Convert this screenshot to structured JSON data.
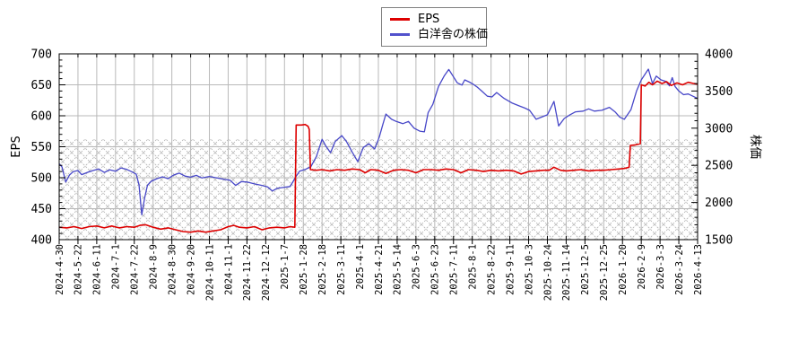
{
  "background": "#ffffff",
  "legend": {
    "position": "top-center",
    "items": [
      {
        "label": "EPS",
        "color": "#dd0000"
      },
      {
        "label": "白洋舎の株価",
        "color": "#5252cc"
      }
    ]
  },
  "chart_data": {
    "type": "line",
    "title": "",
    "grid": true,
    "legend_position": "top-center",
    "left_axis": {
      "label": "EPS",
      "min": 400,
      "max": 700,
      "tick_step": 50,
      "minor_step": 10,
      "tick_labels": [
        "400",
        "450",
        "500",
        "550",
        "600",
        "650",
        "700"
      ]
    },
    "right_axis": {
      "label": "株価",
      "min": 1500,
      "max": 4000,
      "tick_step": 500,
      "minor_step": 100,
      "tick_labels": [
        "1500",
        "2000",
        "2500",
        "3000",
        "3500",
        "4000"
      ]
    },
    "hatch_band": {
      "axis": "right",
      "from": 1500,
      "to": 2850,
      "style": "crosshatch"
    },
    "x_tick_labels": [
      "2024-4-30",
      "2024-5-22",
      "2024-6-11",
      "2024-7-1",
      "2024-7-22",
      "2024-8-9",
      "2024-8-30",
      "2024-9-20",
      "2024-10-11",
      "2024-11-1",
      "2024-11-22",
      "2024-12-12",
      "2025-1-7",
      "2025-1-28",
      "2025-2-18",
      "2025-3-11",
      "2025-4-1",
      "2025-4-21",
      "2025-5-14",
      "2025-6-3",
      "2025-6-23",
      "2025-7-11",
      "2025-8-1",
      "2025-8-22",
      "2025-9-11",
      "2025-10-3",
      "2025-10-24",
      "2025-11-14",
      "2025-12-5",
      "2025-12-25",
      "2026-1-20",
      "2026-2-9",
      "2026-3-3",
      "2026-3-24",
      "2026-4-13"
    ],
    "series": [
      {
        "name": "白洋舎の株価",
        "axis": "right",
        "color": "#4747c8",
        "width": 1.3,
        "points": [
          [
            0,
            2520
          ],
          [
            0.15,
            2480
          ],
          [
            0.35,
            2275
          ],
          [
            0.55,
            2370
          ],
          [
            0.75,
            2415
          ],
          [
            1.0,
            2430
          ],
          [
            1.2,
            2375
          ],
          [
            1.5,
            2405
          ],
          [
            1.8,
            2430
          ],
          [
            2.1,
            2450
          ],
          [
            2.4,
            2405
          ],
          [
            2.7,
            2440
          ],
          [
            3.0,
            2420
          ],
          [
            3.3,
            2465
          ],
          [
            3.6,
            2445
          ],
          [
            3.9,
            2410
          ],
          [
            4.1,
            2380
          ],
          [
            4.25,
            2240
          ],
          [
            4.4,
            1835
          ],
          [
            4.55,
            2060
          ],
          [
            4.7,
            2230
          ],
          [
            4.9,
            2285
          ],
          [
            5.2,
            2320
          ],
          [
            5.5,
            2345
          ],
          [
            5.8,
            2320
          ],
          [
            6.1,
            2370
          ],
          [
            6.4,
            2395
          ],
          [
            6.7,
            2355
          ],
          [
            7.0,
            2340
          ],
          [
            7.3,
            2365
          ],
          [
            7.6,
            2330
          ],
          [
            8.0,
            2350
          ],
          [
            8.4,
            2330
          ],
          [
            8.8,
            2310
          ],
          [
            9.1,
            2300
          ],
          [
            9.4,
            2230
          ],
          [
            9.7,
            2280
          ],
          [
            10.0,
            2275
          ],
          [
            10.4,
            2250
          ],
          [
            10.8,
            2230
          ],
          [
            11.1,
            2210
          ],
          [
            11.35,
            2155
          ],
          [
            11.6,
            2190
          ],
          [
            12.0,
            2205
          ],
          [
            12.3,
            2215
          ],
          [
            12.6,
            2345
          ],
          [
            12.8,
            2420
          ],
          [
            13.1,
            2445
          ],
          [
            13.4,
            2480
          ],
          [
            13.7,
            2620
          ],
          [
            14.0,
            2850
          ],
          [
            14.2,
            2760
          ],
          [
            14.45,
            2670
          ],
          [
            14.7,
            2820
          ],
          [
            15.05,
            2900
          ],
          [
            15.3,
            2820
          ],
          [
            15.6,
            2680
          ],
          [
            15.9,
            2550
          ],
          [
            16.2,
            2740
          ],
          [
            16.5,
            2790
          ],
          [
            16.8,
            2720
          ],
          [
            17.05,
            2880
          ],
          [
            17.25,
            3060
          ],
          [
            17.4,
            3190
          ],
          [
            17.7,
            3120
          ],
          [
            17.95,
            3090
          ],
          [
            18.3,
            3060
          ],
          [
            18.6,
            3090
          ],
          [
            18.9,
            3000
          ],
          [
            19.2,
            2960
          ],
          [
            19.45,
            2950
          ],
          [
            19.65,
            3210
          ],
          [
            19.9,
            3320
          ],
          [
            20.2,
            3560
          ],
          [
            20.5,
            3700
          ],
          [
            20.75,
            3790
          ],
          [
            21.0,
            3690
          ],
          [
            21.2,
            3610
          ],
          [
            21.45,
            3580
          ],
          [
            21.6,
            3650
          ],
          [
            21.85,
            3620
          ],
          [
            22.05,
            3590
          ],
          [
            22.25,
            3555
          ],
          [
            22.5,
            3500
          ],
          [
            22.8,
            3430
          ],
          [
            23.05,
            3420
          ],
          [
            23.3,
            3480
          ],
          [
            23.7,
            3400
          ],
          [
            24.1,
            3340
          ],
          [
            24.5,
            3300
          ],
          [
            24.8,
            3270
          ],
          [
            25.05,
            3240
          ],
          [
            25.4,
            3120
          ],
          [
            25.7,
            3150
          ],
          [
            26.0,
            3180
          ],
          [
            26.35,
            3360
          ],
          [
            26.6,
            3030
          ],
          [
            26.9,
            3130
          ],
          [
            27.2,
            3180
          ],
          [
            27.5,
            3220
          ],
          [
            27.9,
            3230
          ],
          [
            28.2,
            3260
          ],
          [
            28.5,
            3230
          ],
          [
            28.9,
            3240
          ],
          [
            29.3,
            3280
          ],
          [
            29.6,
            3220
          ],
          [
            29.85,
            3150
          ],
          [
            30.1,
            3120
          ],
          [
            30.45,
            3250
          ],
          [
            30.75,
            3500
          ],
          [
            31.0,
            3650
          ],
          [
            31.38,
            3795
          ],
          [
            31.6,
            3600
          ],
          [
            31.8,
            3700
          ],
          [
            32.05,
            3650
          ],
          [
            32.3,
            3630
          ],
          [
            32.5,
            3570
          ],
          [
            32.65,
            3680
          ],
          [
            32.8,
            3560
          ],
          [
            33.0,
            3500
          ],
          [
            33.25,
            3450
          ],
          [
            33.5,
            3460
          ],
          [
            33.75,
            3430
          ],
          [
            34,
            3400
          ]
        ]
      },
      {
        "name": "EPS",
        "axis": "left",
        "color": "#dd0000",
        "width": 1.6,
        "points": [
          [
            0,
            420
          ],
          [
            0.4,
            419
          ],
          [
            0.8,
            421
          ],
          [
            1.2,
            418
          ],
          [
            1.6,
            421
          ],
          [
            2.0,
            422
          ],
          [
            2.4,
            419
          ],
          [
            2.8,
            422
          ],
          [
            3.2,
            419
          ],
          [
            3.6,
            421
          ],
          [
            4.0,
            420
          ],
          [
            4.3,
            423
          ],
          [
            4.6,
            424
          ],
          [
            5.0,
            420
          ],
          [
            5.4,
            417
          ],
          [
            5.8,
            419
          ],
          [
            6.2,
            416
          ],
          [
            6.6,
            413
          ],
          [
            7.0,
            412
          ],
          [
            7.4,
            414
          ],
          [
            7.8,
            412
          ],
          [
            8.2,
            414
          ],
          [
            8.6,
            416
          ],
          [
            9.0,
            421
          ],
          [
            9.3,
            423
          ],
          [
            9.6,
            420
          ],
          [
            10.0,
            419
          ],
          [
            10.4,
            421
          ],
          [
            10.8,
            416
          ],
          [
            11.2,
            419
          ],
          [
            11.6,
            420
          ],
          [
            12.0,
            419
          ],
          [
            12.3,
            421
          ],
          [
            12.55,
            420
          ],
          [
            12.62,
            585
          ],
          [
            12.9,
            585
          ],
          [
            13.1,
            586
          ],
          [
            13.25,
            583
          ],
          [
            13.32,
            578
          ],
          [
            13.38,
            513
          ],
          [
            13.7,
            512
          ],
          [
            14.0,
            513
          ],
          [
            14.4,
            511
          ],
          [
            14.8,
            513
          ],
          [
            15.2,
            512
          ],
          [
            15.6,
            514
          ],
          [
            16.0,
            513
          ],
          [
            16.3,
            508
          ],
          [
            16.6,
            513
          ],
          [
            17.0,
            512
          ],
          [
            17.4,
            507
          ],
          [
            17.8,
            512
          ],
          [
            18.2,
            513
          ],
          [
            18.6,
            512
          ],
          [
            19.0,
            508
          ],
          [
            19.4,
            513
          ],
          [
            19.8,
            513
          ],
          [
            20.2,
            512
          ],
          [
            20.6,
            514
          ],
          [
            21.0,
            513
          ],
          [
            21.4,
            508
          ],
          [
            21.8,
            513
          ],
          [
            22.2,
            512
          ],
          [
            22.6,
            510
          ],
          [
            23.0,
            512
          ],
          [
            23.4,
            511
          ],
          [
            23.8,
            512
          ],
          [
            24.2,
            511
          ],
          [
            24.6,
            506
          ],
          [
            25.0,
            510
          ],
          [
            25.4,
            511
          ],
          [
            25.8,
            512
          ],
          [
            26.1,
            512
          ],
          [
            26.35,
            517
          ],
          [
            26.7,
            512
          ],
          [
            27.0,
            511
          ],
          [
            27.4,
            512
          ],
          [
            27.8,
            513
          ],
          [
            28.2,
            511
          ],
          [
            28.6,
            512
          ],
          [
            29.0,
            512
          ],
          [
            29.4,
            513
          ],
          [
            29.8,
            514
          ],
          [
            30.1,
            515
          ],
          [
            30.35,
            517
          ],
          [
            30.42,
            552
          ],
          [
            30.7,
            553
          ],
          [
            30.95,
            555
          ],
          [
            31.0,
            650
          ],
          [
            31.2,
            648
          ],
          [
            31.4,
            654
          ],
          [
            31.6,
            650
          ],
          [
            31.85,
            656
          ],
          [
            32.1,
            652
          ],
          [
            32.35,
            655
          ],
          [
            32.6,
            649
          ],
          [
            32.9,
            653
          ],
          [
            33.2,
            650
          ],
          [
            33.5,
            654
          ],
          [
            33.8,
            652
          ],
          [
            34,
            651
          ]
        ]
      }
    ],
    "colors": {
      "grid": "#b9b9b9",
      "hatch": "#b2b2b2",
      "border": "#000000",
      "text": "#000000"
    }
  }
}
